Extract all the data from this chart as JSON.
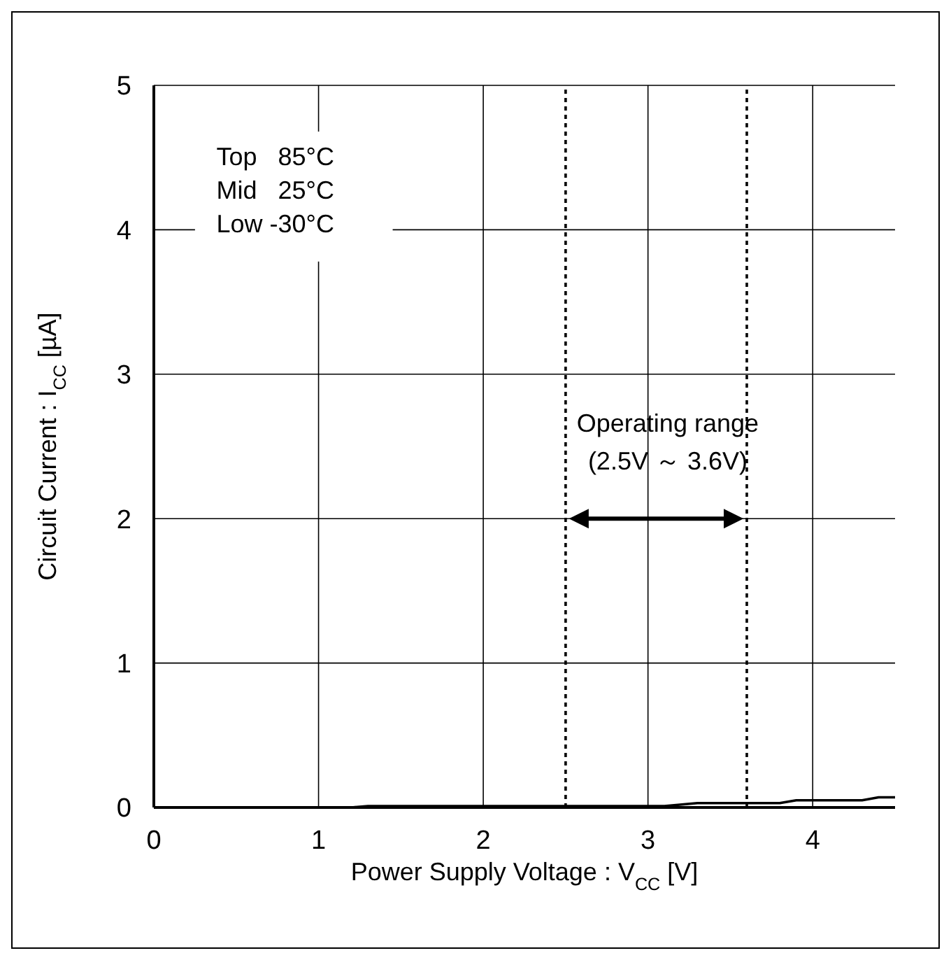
{
  "chart_data": {
    "type": "line",
    "xlabel": "Power Supply Voltage : V$_{CC}$ [V]",
    "ylabel": "Circuit Current : I$_{CC}$ [µA]",
    "x": [
      0,
      1.2,
      1.3,
      3.1,
      3.3,
      3.8,
      3.9,
      4.3,
      4.4,
      4.5
    ],
    "series": [
      {
        "color": "#000000",
        "values": [
          0,
          0,
          0.01,
          0.01,
          0.03,
          0.03,
          0.05,
          0.05,
          0.07,
          0.07
        ]
      }
    ],
    "xlim": [
      0,
      4.5
    ],
    "xticks": [
      0,
      1,
      2,
      3,
      4
    ],
    "ylim": [
      0,
      5
    ],
    "yticks": [
      0,
      1,
      2,
      3,
      4,
      5
    ],
    "grid": true,
    "marker": "none",
    "line_style": "solid",
    "ref_lines": [
      {
        "axis": "x",
        "value": 2.5,
        "color": "#000000",
        "line_style": "dotted"
      },
      {
        "axis": "x",
        "value": 3.6,
        "color": "#000000",
        "line_style": "dotted"
      }
    ],
    "annotations": [
      "Top   85°C",
      "Mid   25°C",
      "Low -30°C",
      "Operating range",
      "(2.5V ～ 3.6V)"
    ]
  }
}
